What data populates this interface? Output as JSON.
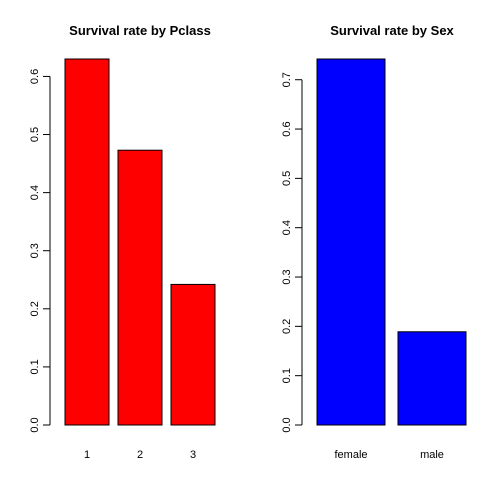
{
  "chart_data": [
    {
      "type": "bar",
      "title": "Survival rate by Pclass",
      "xlabel": "",
      "ylabel": "",
      "categories": [
        "1",
        "2",
        "3"
      ],
      "values": [
        0.63,
        0.473,
        0.242
      ],
      "ylim": [
        0,
        0.63
      ],
      "yticks": [
        0.0,
        0.1,
        0.2,
        0.3,
        0.4,
        0.5,
        0.6
      ],
      "ytick_labels": [
        "0.0",
        "0.1",
        "0.2",
        "0.3",
        "0.4",
        "0.5",
        "0.6"
      ],
      "color": "#ff0000"
    },
    {
      "type": "bar",
      "title": "Survival rate by Sex",
      "xlabel": "",
      "ylabel": "",
      "categories": [
        "female",
        "male"
      ],
      "values": [
        0.742,
        0.189
      ],
      "ylim": [
        0,
        0.742
      ],
      "yticks": [
        0.0,
        0.1,
        0.2,
        0.3,
        0.4,
        0.5,
        0.6,
        0.7
      ],
      "ytick_labels": [
        "0.0",
        "0.1",
        "0.2",
        "0.3",
        "0.4",
        "0.5",
        "0.6",
        "0.7"
      ],
      "color": "#0000ff"
    }
  ]
}
